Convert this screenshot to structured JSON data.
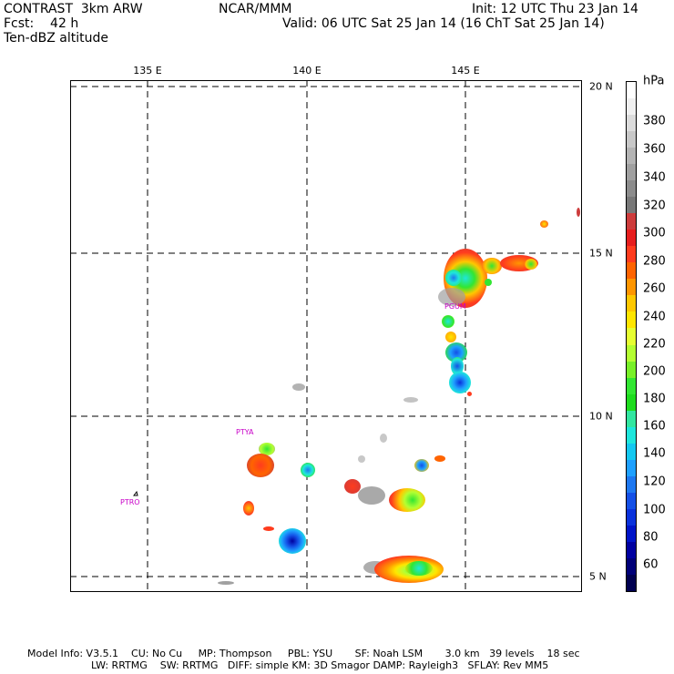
{
  "header": {
    "line1_left": "CONTRAST  3km ARW",
    "line1_center": "NCAR/MMM",
    "line1_right": "Init: 12 UTC Thu 23 Jan 14",
    "line2_left": "Fcst:    42 h",
    "line2_right": "Valid: 06 UTC Sat 25 Jan 14 (16 ChT Sat 25 Jan 14)",
    "line3_left": "Ten-dBZ altitude"
  },
  "map": {
    "lon_ticks": [
      "135 E",
      "140 E",
      "145 E"
    ],
    "lat_ticks": [
      "20 N",
      "15 N",
      "10 N",
      "5 N"
    ],
    "sites": [
      "PGUM",
      "PTYA",
      "PTRO"
    ]
  },
  "colorbar": {
    "unit": "hPa",
    "labels": [
      "380",
      "360",
      "340",
      "320",
      "300",
      "280",
      "260",
      "240",
      "220",
      "200",
      "180",
      "160",
      "140",
      "120",
      "100",
      "80",
      "60"
    ],
    "colors": [
      "#ffffff",
      "#f0f0f0",
      "#dcdcdc",
      "#c8c8c8",
      "#b4b4b4",
      "#a0a0a0",
      "#8c8c8c",
      "#787878",
      "#cd3c3c",
      "#e61e1e",
      "#ff3c1e",
      "#ff6400",
      "#ff9600",
      "#ffc800",
      "#ffe600",
      "#e6ff32",
      "#b4ff32",
      "#78f028",
      "#32e632",
      "#1edc1e",
      "#32e6a0",
      "#1ee6dc",
      "#14c8f0",
      "#1ea0ff",
      "#1e78f0",
      "#1450e6",
      "#0a32dc",
      "#0014c8",
      "#0000a0",
      "#000078",
      "#000050"
    ]
  },
  "footer": {
    "line1": "Model Info: V3.5.1    CU: No Cu     MP: Thompson     PBL: YSU       SF: Noah LSM       3.0 km   39 levels    18 sec",
    "line2": "LW: RRTMG    SW: RRTMG   DIFF: simple KM: 3D Smagor DAMP: Rayleigh3   SFLAY: Rev MM5"
  }
}
